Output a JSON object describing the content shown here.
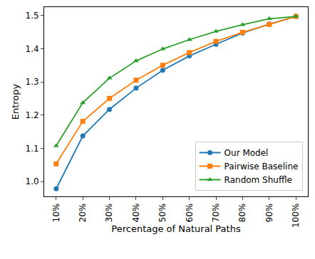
{
  "chart_data": {
    "type": "line",
    "x_label": "Percentage of Natural Paths",
    "y_label": "Entropy",
    "categories": [
      "10%",
      "20%",
      "30%",
      "40%",
      "50%",
      "60%",
      "70%",
      "80%",
      "90%",
      "100%"
    ],
    "series": [
      {
        "name": "Our Model",
        "color": "#1f77b4",
        "marker": "circle",
        "values": [
          0.978,
          1.137,
          1.217,
          1.281,
          1.335,
          1.378,
          1.413,
          1.447,
          1.474,
          1.497
        ]
      },
      {
        "name": "Pairwise Baseline",
        "color": "#ff7f0e",
        "marker": "square",
        "values": [
          1.053,
          1.181,
          1.25,
          1.305,
          1.35,
          1.388,
          1.422,
          1.449,
          1.473,
          1.497
        ]
      },
      {
        "name": "Random Shuffle",
        "color": "#2ca02c",
        "marker": "triangle-up",
        "values": [
          1.107,
          1.237,
          1.311,
          1.363,
          1.399,
          1.427,
          1.452,
          1.472,
          1.49,
          1.497
        ]
      }
    ],
    "ylim": [
      0.955,
      1.525
    ],
    "yticks": [
      {
        "value": 1,
        "label": "1.0"
      },
      1.1,
      1.2,
      1.3,
      1.4,
      1.5
    ],
    "grid": false,
    "legend": "lower right"
  }
}
